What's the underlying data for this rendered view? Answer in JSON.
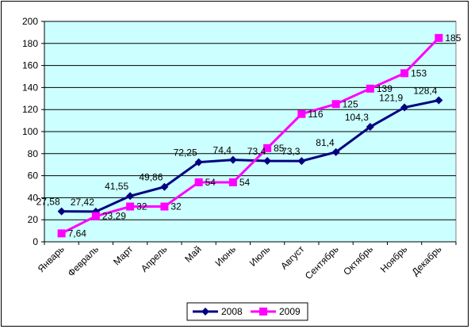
{
  "chart_data": {
    "type": "line",
    "categories": [
      "Январь",
      "Февраль",
      "Март",
      "Апрель",
      "Май",
      "Июнь",
      "Июль",
      "Август",
      "Сентябрь",
      "Октябрь",
      "Ноябрь",
      "Декабрь"
    ],
    "series": [
      {
        "name": "2008",
        "color": "#000080",
        "marker": "diamond",
        "values": [
          27.58,
          27.42,
          41.55,
          49.86,
          72.25,
          74.4,
          73.4,
          73.3,
          81.4,
          104.3,
          121.9,
          128.4
        ],
        "labels": [
          "27,58",
          "27,42",
          "41,55",
          "49,86",
          "72,25",
          "74,4",
          "73,4",
          "73,3",
          "81,4",
          "104,3",
          "121,9",
          "128,4"
        ]
      },
      {
        "name": "2009",
        "color": "#FF00FF",
        "marker": "square",
        "values": [
          7.64,
          23.29,
          32,
          32,
          54,
          54,
          85,
          116,
          125,
          139,
          153,
          185
        ],
        "labels": [
          "7,64",
          "23,29",
          "32",
          "32",
          "54",
          "54",
          "85",
          "116",
          "125",
          "139",
          "153",
          "185"
        ]
      }
    ],
    "y_ticks": [
      "0",
      "20",
      "40",
      "60",
      "80",
      "100",
      "120",
      "140",
      "160",
      "180",
      "200"
    ],
    "ylim": [
      0,
      200
    ],
    "grid": true,
    "plot_background": "#CCFFFF",
    "legend_position": "bottom"
  }
}
